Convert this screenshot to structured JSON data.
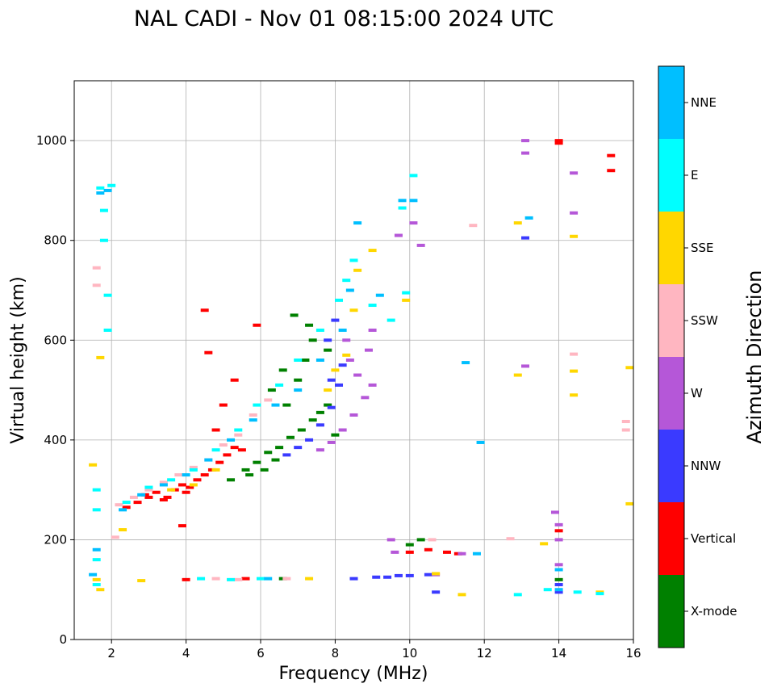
{
  "chart_data": {
    "type": "scatter",
    "title": "NAL CADI - Nov 01 08:15:00 2024 UTC",
    "xlabel": "Frequency (MHz)",
    "ylabel": "Virtual height (km)",
    "xlim": [
      1,
      16
    ],
    "ylim": [
      0,
      1120
    ],
    "x_ticks": [
      2,
      4,
      6,
      8,
      10,
      12,
      14,
      16
    ],
    "x_tick_labels": [
      "2",
      "4",
      "6",
      "8",
      "10",
      "12",
      "14",
      "16"
    ],
    "y_ticks": [
      0,
      200,
      400,
      600,
      800,
      1000
    ],
    "y_tick_labels": [
      "0",
      "200",
      "400",
      "600",
      "800",
      "1000"
    ],
    "grid": true,
    "colorbar": {
      "label": "Azimuth Direction",
      "categories": [
        {
          "name": "X-mode",
          "color": "#008000"
        },
        {
          "name": "Vertical",
          "color": "#ff0000"
        },
        {
          "name": "NNW",
          "color": "#3a3aff"
        },
        {
          "name": "W",
          "color": "#b557d8"
        },
        {
          "name": "SSW",
          "color": "#ffb6c1"
        },
        {
          "name": "SSE",
          "color": "#ffd700"
        },
        {
          "name": "E",
          "color": "#00ffff"
        },
        {
          "name": "NNE",
          "color": "#00bfff"
        }
      ]
    },
    "series": [
      {
        "name": "Vertical",
        "color": "#ff0000",
        "points": [
          [
            2.4,
            265
          ],
          [
            2.7,
            275
          ],
          [
            3.0,
            285
          ],
          [
            3.2,
            295
          ],
          [
            3.5,
            285
          ],
          [
            3.7,
            300
          ],
          [
            3.9,
            310
          ],
          [
            4.1,
            305
          ],
          [
            4.3,
            320
          ],
          [
            4.5,
            330
          ],
          [
            4.7,
            340
          ],
          [
            4.9,
            355
          ],
          [
            5.1,
            370
          ],
          [
            5.3,
            385
          ],
          [
            5.5,
            380
          ],
          [
            4.8,
            420
          ],
          [
            5.0,
            470
          ],
          [
            5.3,
            520
          ],
          [
            4.5,
            660
          ],
          [
            5.9,
            630
          ],
          [
            3.4,
            280
          ],
          [
            2.9,
            290
          ],
          [
            4.0,
            295
          ],
          [
            10.0,
            175
          ],
          [
            10.5,
            180
          ],
          [
            11.0,
            175
          ],
          [
            11.3,
            172
          ],
          [
            14.0,
            1000
          ],
          [
            14.0,
            995
          ],
          [
            15.4,
            970
          ],
          [
            15.4,
            940
          ],
          [
            14.0,
            218
          ],
          [
            3.9,
            228
          ],
          [
            4.6,
            575
          ],
          [
            4.0,
            120
          ],
          [
            5.6,
            122
          ]
        ]
      },
      {
        "name": "X-mode",
        "color": "#008000",
        "points": [
          [
            5.2,
            320
          ],
          [
            5.6,
            340
          ],
          [
            5.9,
            355
          ],
          [
            6.2,
            375
          ],
          [
            6.5,
            385
          ],
          [
            6.8,
            405
          ],
          [
            7.1,
            420
          ],
          [
            7.4,
            440
          ],
          [
            7.6,
            455
          ],
          [
            7.8,
            470
          ],
          [
            8.0,
            410
          ],
          [
            6.4,
            360
          ],
          [
            6.1,
            340
          ],
          [
            5.7,
            330
          ],
          [
            6.7,
            470
          ],
          [
            7.0,
            520
          ],
          [
            7.2,
            560
          ],
          [
            7.4,
            600
          ],
          [
            6.9,
            650
          ],
          [
            7.3,
            630
          ],
          [
            7.8,
            580
          ],
          [
            6.6,
            540
          ],
          [
            6.3,
            500
          ],
          [
            10.0,
            190
          ],
          [
            10.3,
            200
          ],
          [
            6.6,
            122
          ],
          [
            14.0,
            120
          ]
        ]
      },
      {
        "name": "NNW",
        "color": "#3a3aff",
        "points": [
          [
            6.7,
            370
          ],
          [
            7.0,
            385
          ],
          [
            7.3,
            400
          ],
          [
            7.6,
            430
          ],
          [
            7.9,
            465
          ],
          [
            8.1,
            510
          ],
          [
            8.2,
            550
          ],
          [
            7.8,
            600
          ],
          [
            8.0,
            640
          ],
          [
            9.1,
            125
          ],
          [
            9.4,
            125
          ],
          [
            9.7,
            128
          ],
          [
            10.0,
            128
          ],
          [
            10.5,
            130
          ],
          [
            8.5,
            122
          ],
          [
            10.7,
            95
          ],
          [
            13.1,
            805
          ],
          [
            14.0,
            110
          ],
          [
            14.0,
            95
          ],
          [
            7.9,
            520
          ]
        ]
      },
      {
        "name": "W",
        "color": "#b557d8",
        "points": [
          [
            7.6,
            380
          ],
          [
            7.9,
            395
          ],
          [
            8.2,
            420
          ],
          [
            8.5,
            450
          ],
          [
            8.8,
            485
          ],
          [
            9.0,
            510
          ],
          [
            8.6,
            530
          ],
          [
            8.4,
            560
          ],
          [
            8.9,
            580
          ],
          [
            8.3,
            600
          ],
          [
            9.0,
            620
          ],
          [
            9.7,
            810
          ],
          [
            10.3,
            790
          ],
          [
            10.1,
            835
          ],
          [
            13.1,
            1000
          ],
          [
            13.1,
            975
          ],
          [
            14.4,
            935
          ],
          [
            14.4,
            855
          ],
          [
            13.1,
            548
          ],
          [
            13.9,
            255
          ],
          [
            14.0,
            230
          ],
          [
            14.0,
            200
          ],
          [
            9.6,
            175
          ],
          [
            10.7,
            130
          ],
          [
            11.4,
            172
          ],
          [
            14.0,
            150
          ],
          [
            9.5,
            200
          ]
        ]
      },
      {
        "name": "SSW",
        "color": "#ffb6c1",
        "points": [
          [
            2.2,
            270
          ],
          [
            2.6,
            285
          ],
          [
            3.0,
            300
          ],
          [
            3.4,
            315
          ],
          [
            3.8,
            330
          ],
          [
            4.2,
            345
          ],
          [
            4.6,
            360
          ],
          [
            5.0,
            390
          ],
          [
            5.4,
            410
          ],
          [
            5.8,
            450
          ],
          [
            6.2,
            480
          ],
          [
            4.8,
            122
          ],
          [
            5.4,
            120
          ],
          [
            6.7,
            122
          ],
          [
            1.6,
            745
          ],
          [
            1.6,
            710
          ],
          [
            14.4,
            572
          ],
          [
            15.8,
            437
          ],
          [
            15.8,
            420
          ],
          [
            12.7,
            202
          ],
          [
            11.7,
            830
          ],
          [
            10.6,
            200
          ],
          [
            2.1,
            205
          ]
        ]
      },
      {
        "name": "SSE",
        "color": "#ffd700",
        "points": [
          [
            1.6,
            120
          ],
          [
            1.7,
            100
          ],
          [
            1.5,
            350
          ],
          [
            2.3,
            220
          ],
          [
            2.8,
            118
          ],
          [
            3.6,
            300
          ],
          [
            4.2,
            310
          ],
          [
            4.8,
            340
          ],
          [
            7.8,
            500
          ],
          [
            8.0,
            540
          ],
          [
            8.3,
            570
          ],
          [
            8.6,
            740
          ],
          [
            9.0,
            780
          ],
          [
            9.9,
            680
          ],
          [
            12.9,
            835
          ],
          [
            12.9,
            530
          ],
          [
            14.4,
            808
          ],
          [
            14.4,
            538
          ],
          [
            14.4,
            490
          ],
          [
            15.9,
            545
          ],
          [
            15.9,
            272
          ],
          [
            13.6,
            192
          ],
          [
            15.1,
            95
          ],
          [
            11.4,
            90
          ],
          [
            10.7,
            132
          ],
          [
            7.3,
            122
          ],
          [
            8.5,
            660
          ],
          [
            1.7,
            565
          ]
        ]
      },
      {
        "name": "E",
        "color": "#00ffff",
        "points": [
          [
            1.6,
            110
          ],
          [
            1.6,
            160
          ],
          [
            1.6,
            260
          ],
          [
            1.6,
            300
          ],
          [
            1.9,
            620
          ],
          [
            1.9,
            690
          ],
          [
            1.8,
            800
          ],
          [
            1.8,
            860
          ],
          [
            1.7,
            905
          ],
          [
            2.0,
            910
          ],
          [
            2.4,
            275
          ],
          [
            3.0,
            305
          ],
          [
            3.6,
            320
          ],
          [
            4.2,
            340
          ],
          [
            4.8,
            380
          ],
          [
            5.4,
            420
          ],
          [
            5.9,
            470
          ],
          [
            6.5,
            510
          ],
          [
            7.0,
            560
          ],
          [
            7.6,
            620
          ],
          [
            8.1,
            680
          ],
          [
            8.3,
            720
          ],
          [
            8.5,
            760
          ],
          [
            9.0,
            670
          ],
          [
            9.5,
            640
          ],
          [
            9.9,
            695
          ],
          [
            10.1,
            930
          ],
          [
            9.8,
            865
          ],
          [
            4.4,
            122
          ],
          [
            5.2,
            120
          ],
          [
            6.0,
            122
          ],
          [
            12.9,
            90
          ],
          [
            14.5,
            95
          ],
          [
            15.1,
            92
          ],
          [
            13.7,
            100
          ]
        ]
      },
      {
        "name": "NNE",
        "color": "#00bfff",
        "points": [
          [
            1.5,
            130
          ],
          [
            1.6,
            180
          ],
          [
            1.7,
            895
          ],
          [
            1.9,
            900
          ],
          [
            2.3,
            260
          ],
          [
            2.8,
            290
          ],
          [
            3.4,
            310
          ],
          [
            4.0,
            330
          ],
          [
            4.6,
            360
          ],
          [
            5.2,
            400
          ],
          [
            5.8,
            440
          ],
          [
            6.4,
            470
          ],
          [
            7.0,
            500
          ],
          [
            7.6,
            560
          ],
          [
            8.2,
            620
          ],
          [
            8.4,
            700
          ],
          [
            8.6,
            835
          ],
          [
            9.2,
            690
          ],
          [
            9.8,
            880
          ],
          [
            10.1,
            880
          ],
          [
            13.2,
            845
          ],
          [
            11.8,
            172
          ],
          [
            11.9,
            395
          ],
          [
            11.5,
            555
          ],
          [
            6.2,
            122
          ],
          [
            14.0,
            140
          ],
          [
            14.0,
            100
          ]
        ]
      }
    ]
  }
}
